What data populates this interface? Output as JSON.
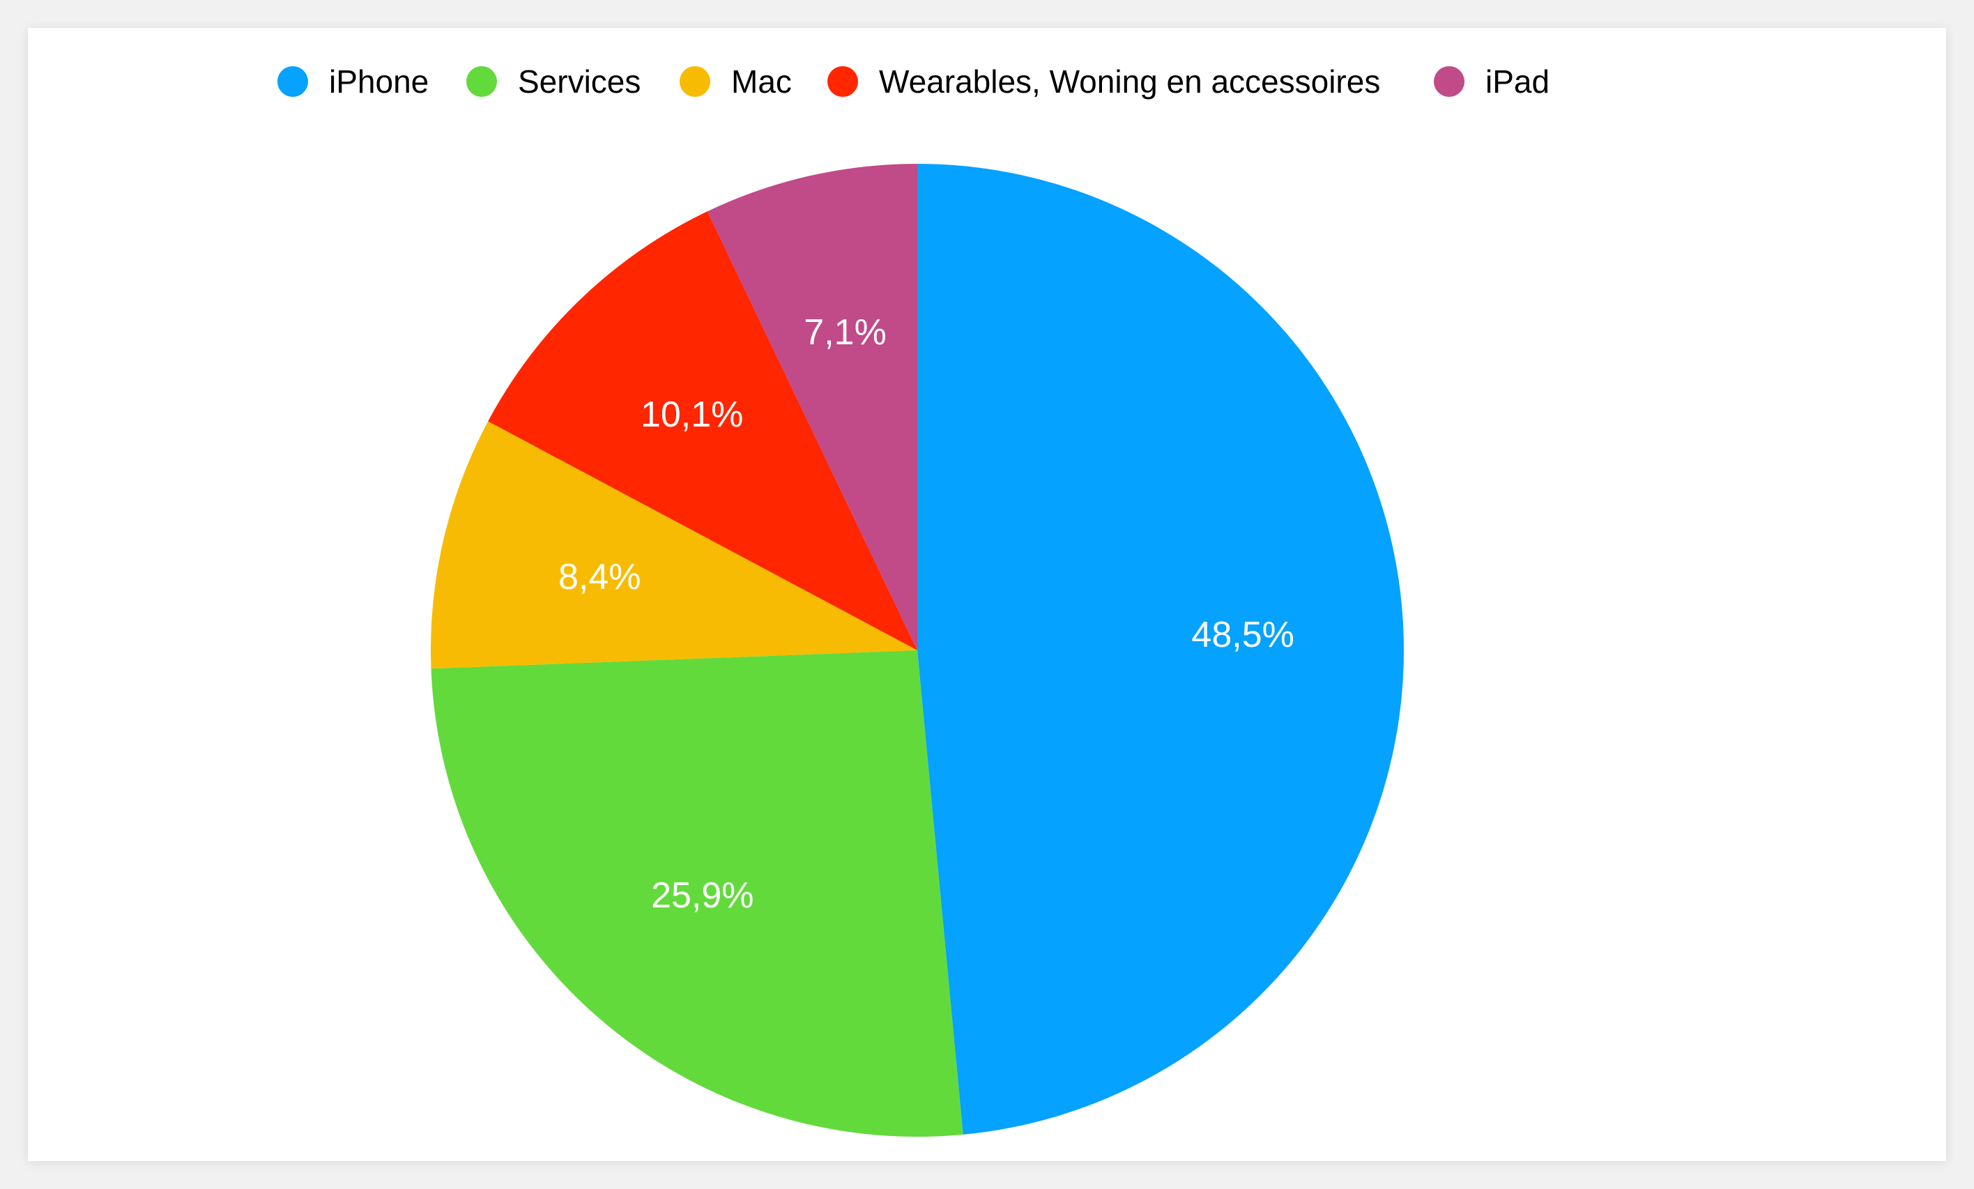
{
  "chart_data": {
    "type": "pie",
    "title": "",
    "legend_position": "top",
    "start_angle_deg": 0,
    "direction": "clockwise",
    "slices": [
      {
        "name": "iPhone",
        "value": 48.5,
        "label": "48,5%",
        "color": "#05A2FF"
      },
      {
        "name": "Services",
        "value": 25.9,
        "label": "25,9%",
        "color": "#62DA3C"
      },
      {
        "name": "Mac",
        "value": 8.4,
        "label": "8,4%",
        "color": "#F8BB03"
      },
      {
        "name": "Wearables, Woning en accessoires",
        "value": 10.1,
        "label": "10,1%",
        "color": "#FF2600"
      },
      {
        "name": "iPad",
        "value": 7.1,
        "label": "7,1%",
        "color": "#C14A88"
      }
    ]
  }
}
